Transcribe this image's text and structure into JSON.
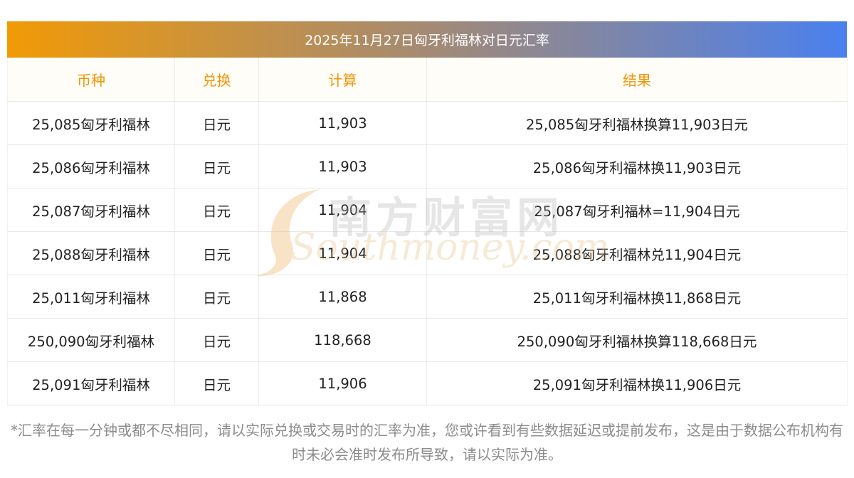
{
  "title": "2025年11月27日匈牙利福林对日元汇率",
  "headers": [
    "币种",
    "兑换",
    "计算",
    "结果"
  ],
  "rows": [
    {
      "currency": "25,085匈牙利福林",
      "target": "日元",
      "amount": "11,903",
      "result": "25,085匈牙利福林换算11,903日元"
    },
    {
      "currency": "25,086匈牙利福林",
      "target": "日元",
      "amount": "11,903",
      "result": "25,086匈牙利福林换11,903日元"
    },
    {
      "currency": "25,087匈牙利福林",
      "target": "日元",
      "amount": "11,904",
      "result": "25,087匈牙利福林=11,904日元"
    },
    {
      "currency": "25,088匈牙利福林",
      "target": "日元",
      "amount": "11,904",
      "result": "25,088匈牙利福林兑11,904日元"
    },
    {
      "currency": "25,011匈牙利福林",
      "target": "日元",
      "amount": "11,868",
      "result": "25,011匈牙利福林换11,868日元"
    },
    {
      "currency": "250,090匈牙利福林",
      "target": "日元",
      "amount": "118,668",
      "result": "250,090匈牙利福林换算118,668日元"
    },
    {
      "currency": "25,091匈牙利福林",
      "target": "日元",
      "amount": "11,906",
      "result": "25,091匈牙利福林换11,906日元"
    }
  ],
  "watermark": {
    "cn": "南方财富网",
    "en": "Southmoney.com"
  },
  "disclaimer": "*汇率在每一分钟或都不尽相同，请以实际兑换或交易时的汇率为准，您或许看到有些数据延迟或提前发布，这是由于数据公布机构有时未必会准时发布所导致，请以实际为准。",
  "colors": {
    "header_text": "#f29407",
    "gradient_start": "#f19a06",
    "gradient_end": "#4a80ef",
    "note_text": "#8c8c8c"
  }
}
